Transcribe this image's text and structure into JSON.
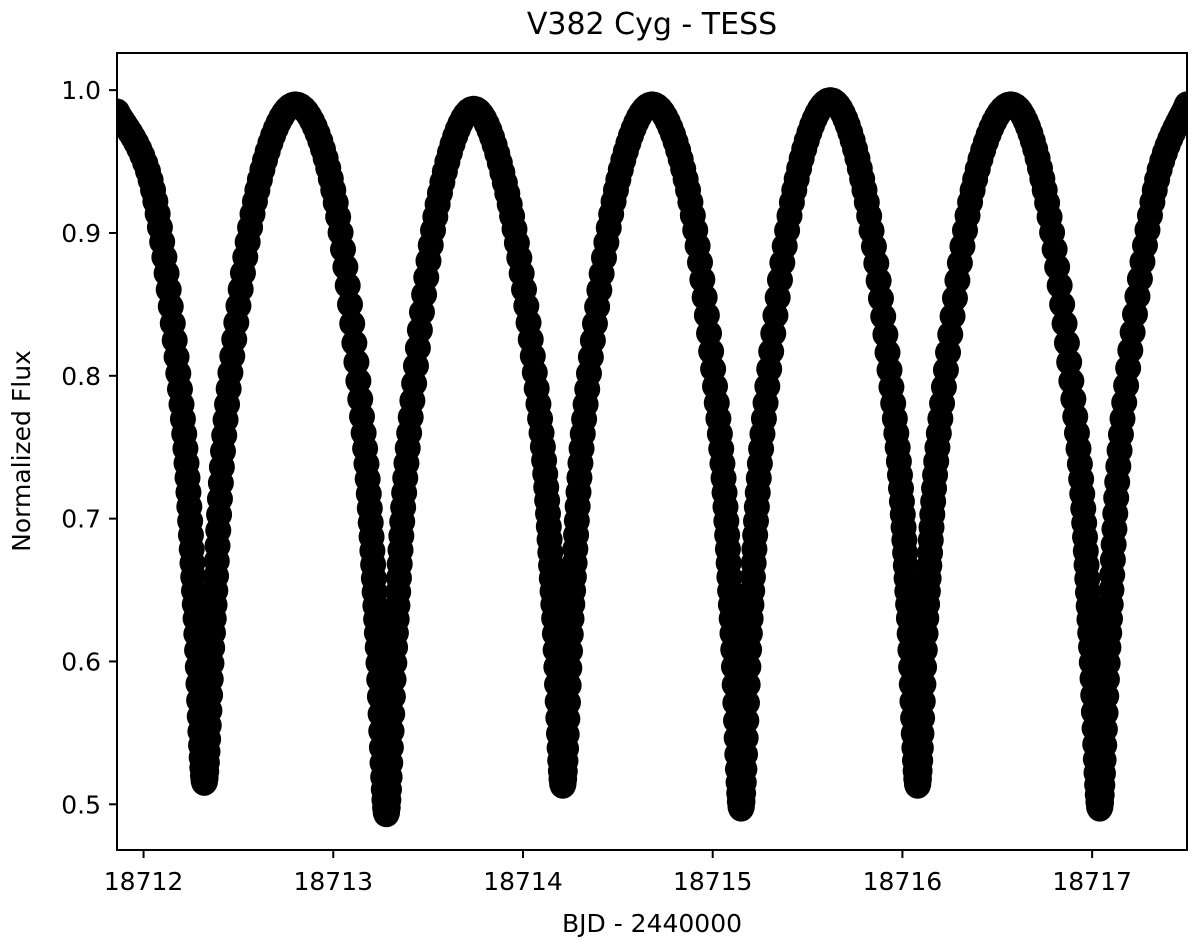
{
  "chart_data": {
    "type": "scatter",
    "title": "V382 Cyg - TESS",
    "xlabel": "BJD - 2440000",
    "ylabel": "Normalized Flux",
    "xlim": [
      18711.86,
      18717.5
    ],
    "ylim": [
      0.468,
      1.026
    ],
    "grid": false,
    "legend": "none",
    "xticks": [
      18712,
      18713,
      18714,
      18715,
      18716,
      18717
    ],
    "xtick_labels": [
      "18712",
      "18713",
      "18714",
      "18715",
      "18716",
      "18717"
    ],
    "yticks": [
      0.5,
      0.6,
      0.7,
      0.8,
      0.9,
      1.0
    ],
    "ytick_labels": [
      "0.5",
      "0.6",
      "0.7",
      "0.8",
      "0.9",
      "1.0"
    ],
    "marker_color": "#000000",
    "series": [
      {
        "x": [
          18711.86,
          18712.05,
          18712.2,
          18712.27,
          18712.32,
          18712.37,
          18712.44,
          18712.6,
          18712.8,
          18713.0,
          18713.16,
          18713.23,
          18713.28,
          18713.33,
          18713.4,
          18713.55,
          18713.74,
          18713.93,
          18714.09,
          18714.16,
          18714.21,
          18714.26,
          18714.33,
          18714.49,
          18714.68,
          18714.87,
          18715.03,
          18715.1,
          18715.15,
          18715.2,
          18715.27,
          18715.43,
          18715.62,
          18715.8,
          18715.96,
          18716.03,
          18716.08,
          18716.13,
          18716.2,
          18716.37,
          18716.57,
          18716.75,
          18716.92,
          18716.99,
          18717.04,
          18717.09,
          18717.16,
          18717.33,
          18717.5
        ],
        "y": [
          0.985,
          0.93,
          0.78,
          0.64,
          0.515,
          0.63,
          0.78,
          0.93,
          0.99,
          0.93,
          0.76,
          0.62,
          0.493,
          0.62,
          0.76,
          0.92,
          0.987,
          0.92,
          0.77,
          0.64,
          0.513,
          0.64,
          0.78,
          0.93,
          0.99,
          0.93,
          0.77,
          0.63,
          0.497,
          0.63,
          0.77,
          0.93,
          0.993,
          0.93,
          0.77,
          0.64,
          0.513,
          0.64,
          0.77,
          0.93,
          0.99,
          0.93,
          0.76,
          0.62,
          0.497,
          0.62,
          0.77,
          0.93,
          0.99
        ]
      }
    ]
  }
}
